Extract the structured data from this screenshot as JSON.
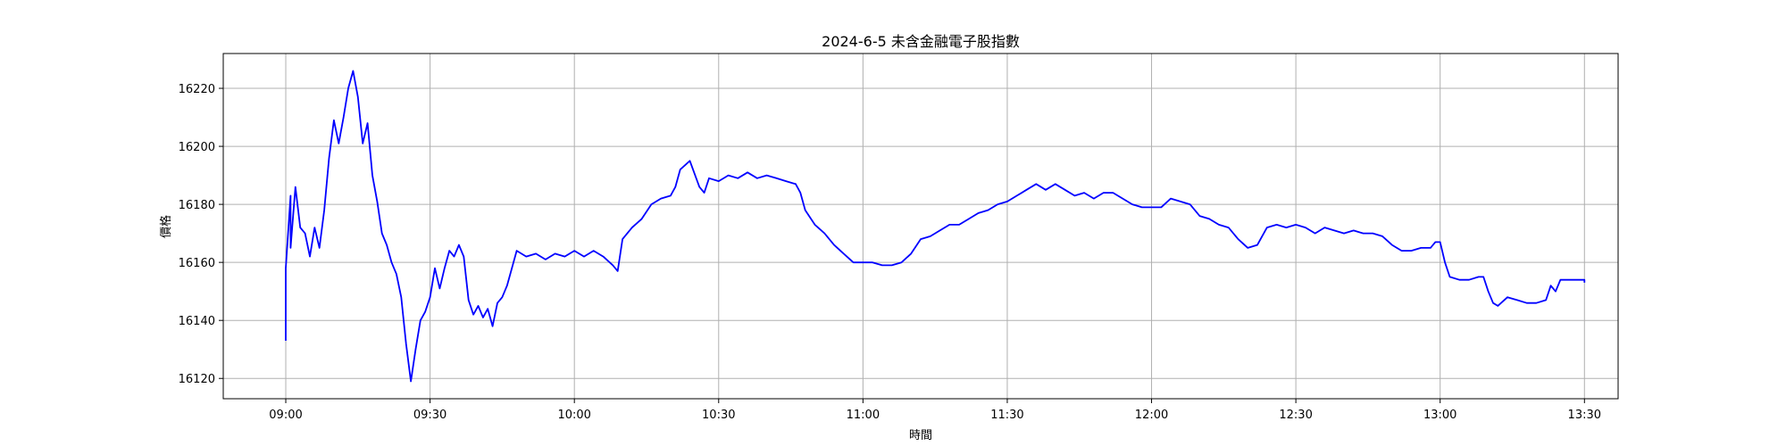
{
  "chart_data": {
    "type": "line",
    "title": "2024-6-5 未含金融電子股指數",
    "xlabel": "時間",
    "ylabel": "價格",
    "x_ticks": [
      "09:00",
      "09:30",
      "10:00",
      "10:30",
      "11:00",
      "11:30",
      "12:00",
      "12:30",
      "13:00",
      "13:30"
    ],
    "y_ticks": [
      16120,
      16140,
      16160,
      16180,
      16200,
      16220
    ],
    "xlim": [
      "08:47",
      "13:37"
    ],
    "ylim": [
      16113,
      16232
    ],
    "grid": true,
    "series": [
      {
        "color": "#0000ff",
        "points": [
          [
            "09:00",
            16133
          ],
          [
            "09:00",
            16158
          ],
          [
            "09:01",
            16183
          ],
          [
            "09:01",
            16165
          ],
          [
            "09:02",
            16186
          ],
          [
            "09:03",
            16172
          ],
          [
            "09:04",
            16170
          ],
          [
            "09:05",
            16162
          ],
          [
            "09:06",
            16172
          ],
          [
            "09:07",
            16165
          ],
          [
            "09:08",
            16178
          ],
          [
            "09:09",
            16196
          ],
          [
            "09:10",
            16209
          ],
          [
            "09:11",
            16201
          ],
          [
            "09:12",
            16210
          ],
          [
            "09:13",
            16220
          ],
          [
            "09:14",
            16226
          ],
          [
            "09:15",
            16217
          ],
          [
            "09:16",
            16201
          ],
          [
            "09:17",
            16208
          ],
          [
            "09:18",
            16190
          ],
          [
            "09:19",
            16181
          ],
          [
            "09:20",
            16170
          ],
          [
            "09:21",
            16166
          ],
          [
            "09:22",
            16160
          ],
          [
            "09:23",
            16156
          ],
          [
            "09:24",
            16148
          ],
          [
            "09:25",
            16132
          ],
          [
            "09:26",
            16119
          ],
          [
            "09:27",
            16130
          ],
          [
            "09:28",
            16140
          ],
          [
            "09:29",
            16143
          ],
          [
            "09:30",
            16148
          ],
          [
            "09:31",
            16158
          ],
          [
            "09:32",
            16151
          ],
          [
            "09:33",
            16158
          ],
          [
            "09:34",
            16164
          ],
          [
            "09:35",
            16162
          ],
          [
            "09:36",
            16166
          ],
          [
            "09:37",
            16162
          ],
          [
            "09:38",
            16147
          ],
          [
            "09:39",
            16142
          ],
          [
            "09:40",
            16145
          ],
          [
            "09:41",
            16141
          ],
          [
            "09:42",
            16144
          ],
          [
            "09:43",
            16138
          ],
          [
            "09:44",
            16146
          ],
          [
            "09:45",
            16148
          ],
          [
            "09:46",
            16152
          ],
          [
            "09:47",
            16158
          ],
          [
            "09:48",
            16164
          ],
          [
            "09:50",
            16162
          ],
          [
            "09:52",
            16163
          ],
          [
            "09:54",
            16161
          ],
          [
            "09:56",
            16163
          ],
          [
            "09:58",
            16162
          ],
          [
            "10:00",
            16164
          ],
          [
            "10:02",
            16162
          ],
          [
            "10:04",
            16164
          ],
          [
            "10:06",
            16162
          ],
          [
            "10:08",
            16159
          ],
          [
            "10:09",
            16157
          ],
          [
            "10:10",
            16168
          ],
          [
            "10:12",
            16172
          ],
          [
            "10:14",
            16175
          ],
          [
            "10:16",
            16180
          ],
          [
            "10:18",
            16182
          ],
          [
            "10:20",
            16183
          ],
          [
            "10:21",
            16186
          ],
          [
            "10:22",
            16192
          ],
          [
            "10:24",
            16195
          ],
          [
            "10:26",
            16186
          ],
          [
            "10:27",
            16184
          ],
          [
            "10:28",
            16189
          ],
          [
            "10:30",
            16188
          ],
          [
            "10:32",
            16190
          ],
          [
            "10:34",
            16189
          ],
          [
            "10:36",
            16191
          ],
          [
            "10:38",
            16189
          ],
          [
            "10:40",
            16190
          ],
          [
            "10:42",
            16189
          ],
          [
            "10:44",
            16188
          ],
          [
            "10:46",
            16187
          ],
          [
            "10:47",
            16184
          ],
          [
            "10:48",
            16178
          ],
          [
            "10:50",
            16173
          ],
          [
            "10:52",
            16170
          ],
          [
            "10:54",
            16166
          ],
          [
            "10:56",
            16163
          ],
          [
            "10:58",
            16160
          ],
          [
            "11:00",
            16160
          ],
          [
            "11:02",
            16160
          ],
          [
            "11:04",
            16159
          ],
          [
            "11:06",
            16159
          ],
          [
            "11:08",
            16160
          ],
          [
            "11:10",
            16163
          ],
          [
            "11:12",
            16168
          ],
          [
            "11:14",
            16169
          ],
          [
            "11:16",
            16171
          ],
          [
            "11:18",
            16173
          ],
          [
            "11:20",
            16173
          ],
          [
            "11:22",
            16175
          ],
          [
            "11:24",
            16177
          ],
          [
            "11:26",
            16178
          ],
          [
            "11:28",
            16180
          ],
          [
            "11:30",
            16181
          ],
          [
            "11:32",
            16183
          ],
          [
            "11:34",
            16185
          ],
          [
            "11:36",
            16187
          ],
          [
            "11:38",
            16185
          ],
          [
            "11:40",
            16187
          ],
          [
            "11:42",
            16185
          ],
          [
            "11:44",
            16183
          ],
          [
            "11:46",
            16184
          ],
          [
            "11:48",
            16182
          ],
          [
            "11:50",
            16184
          ],
          [
            "11:52",
            16184
          ],
          [
            "11:54",
            16182
          ],
          [
            "11:56",
            16180
          ],
          [
            "11:58",
            16179
          ],
          [
            "12:00",
            16179
          ],
          [
            "12:02",
            16179
          ],
          [
            "12:04",
            16182
          ],
          [
            "12:06",
            16181
          ],
          [
            "12:08",
            16180
          ],
          [
            "12:10",
            16176
          ],
          [
            "12:12",
            16175
          ],
          [
            "12:14",
            16173
          ],
          [
            "12:16",
            16172
          ],
          [
            "12:18",
            16168
          ],
          [
            "12:20",
            16165
          ],
          [
            "12:22",
            16166
          ],
          [
            "12:24",
            16172
          ],
          [
            "12:26",
            16173
          ],
          [
            "12:28",
            16172
          ],
          [
            "12:30",
            16173
          ],
          [
            "12:32",
            16172
          ],
          [
            "12:34",
            16170
          ],
          [
            "12:36",
            16172
          ],
          [
            "12:38",
            16171
          ],
          [
            "12:40",
            16170
          ],
          [
            "12:42",
            16171
          ],
          [
            "12:44",
            16170
          ],
          [
            "12:46",
            16170
          ],
          [
            "12:48",
            16169
          ],
          [
            "12:50",
            16166
          ],
          [
            "12:52",
            16164
          ],
          [
            "12:54",
            16164
          ],
          [
            "12:56",
            16165
          ],
          [
            "12:58",
            16165
          ],
          [
            "12:59",
            16167
          ],
          [
            "13:00",
            16167
          ],
          [
            "13:01",
            16160
          ],
          [
            "13:02",
            16155
          ],
          [
            "13:04",
            16154
          ],
          [
            "13:06",
            16154
          ],
          [
            "13:08",
            16155
          ],
          [
            "13:09",
            16155
          ],
          [
            "13:10",
            16150
          ],
          [
            "13:11",
            16146
          ],
          [
            "13:12",
            16145
          ],
          [
            "13:14",
            16148
          ],
          [
            "13:16",
            16147
          ],
          [
            "13:18",
            16146
          ],
          [
            "13:20",
            16146
          ],
          [
            "13:22",
            16147
          ],
          [
            "13:23",
            16152
          ],
          [
            "13:24",
            16150
          ],
          [
            "13:25",
            16154
          ],
          [
            "13:27",
            16154
          ],
          [
            "13:29",
            16154
          ],
          [
            "13:30",
            16154
          ],
          [
            "13:30",
            16153
          ]
        ]
      }
    ]
  }
}
